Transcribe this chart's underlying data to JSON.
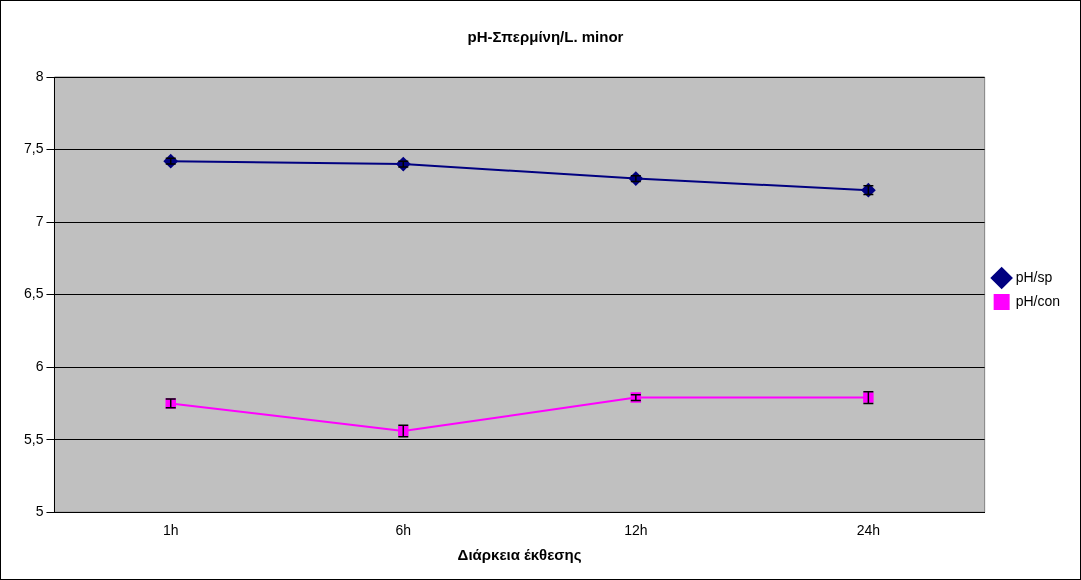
{
  "chart_data": {
    "type": "line",
    "title": "pH-Σπερμίνη/L. minor",
    "xlabel": "Διάρκεια έκθεσης",
    "categories": [
      "1h",
      "6h",
      "12h",
      "24h"
    ],
    "series": [
      {
        "name": "pH/sp",
        "color": "#000080",
        "values": [
          7.42,
          7.4,
          7.3,
          7.22
        ],
        "errors": [
          0.02,
          0.02,
          0.02,
          0.03
        ],
        "marker": "diamond"
      },
      {
        "name": "pH/con",
        "color": "#ff00ff",
        "values": [
          5.75,
          5.56,
          5.79,
          5.79
        ],
        "errors": [
          0.03,
          0.04,
          0.02,
          0.04
        ],
        "marker": "square"
      }
    ],
    "ylim": [
      5,
      8
    ],
    "yticks": [
      5,
      {
        "value": 5.5,
        "label": "5,5"
      },
      6,
      {
        "value": 6.5,
        "label": "6,5"
      },
      7,
      {
        "value": 7.5,
        "label": "7,5"
      },
      8
    ],
    "grid": "y",
    "legend": "right",
    "line_style": "solid"
  }
}
